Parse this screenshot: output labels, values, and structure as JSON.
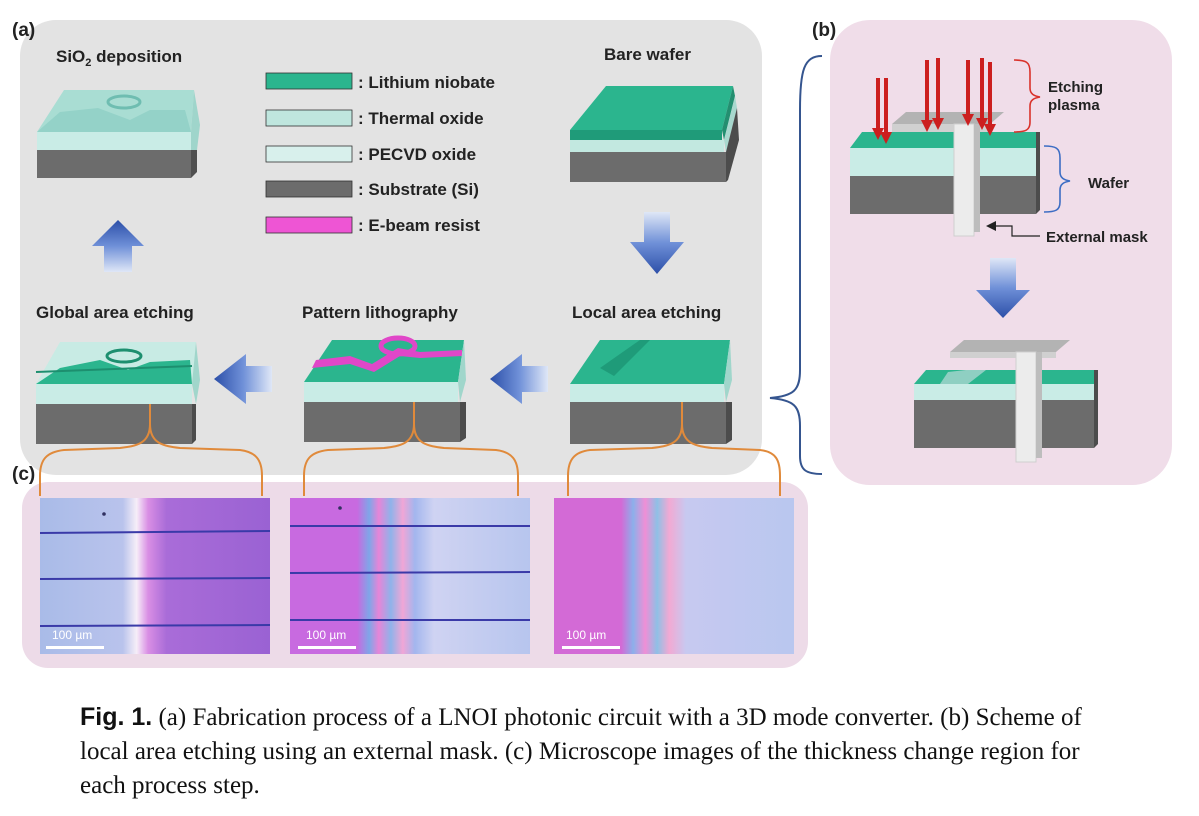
{
  "panel_a": {
    "panel_label": "(a)",
    "steps": {
      "sio2_prefix": "SiO",
      "sio2_sub": "2",
      "sio2_suffix": " deposition",
      "bare_wafer": "Bare wafer",
      "global_area_etching": "Global area etching",
      "pattern_lithography": "Pattern lithography",
      "local_area_etching": "Local area etching"
    },
    "legend": [
      {
        "label": ": Lithium niobate",
        "color": "#2bb58e"
      },
      {
        "label": ": Thermal oxide",
        "color": "#bfe6de"
      },
      {
        "label": ": PECVD oxide",
        "color": "#d8f0ec"
      },
      {
        "label": ": Substrate (Si)",
        "color": "#6c6c6c"
      },
      {
        "label": ": E-beam resist",
        "color": "#ee55d4"
      }
    ],
    "colors": {
      "panel_bg": "#e3e3e3",
      "arrow": "#3e63b4"
    }
  },
  "panel_b": {
    "panel_label": "(b)",
    "etching_plasma_line1": "Etching",
    "etching_plasma_line2": "plasma",
    "wafer": "Wafer",
    "external_mask": "External mask",
    "colors": {
      "panel_bg": "#f0dde9",
      "plasma_arrow": "#cc1f1f",
      "brace_red": "#d9322b",
      "brace_blue": "#3d6dc4"
    }
  },
  "panel_c": {
    "panel_label": "(c)",
    "scale_bars": [
      "100 µm",
      "100 µm",
      "100 µm"
    ],
    "colors": {
      "panel_bg": "#eddbe8",
      "connector": "#e08a3b"
    }
  },
  "caption": {
    "fig_label": "Fig. 1.",
    "text": "(a) Fabrication process of a LNOI photonic circuit with a 3D mode converter. (b) Scheme of local area etching using an external mask. (c) Microscope images of the thickness change region for each process step."
  }
}
